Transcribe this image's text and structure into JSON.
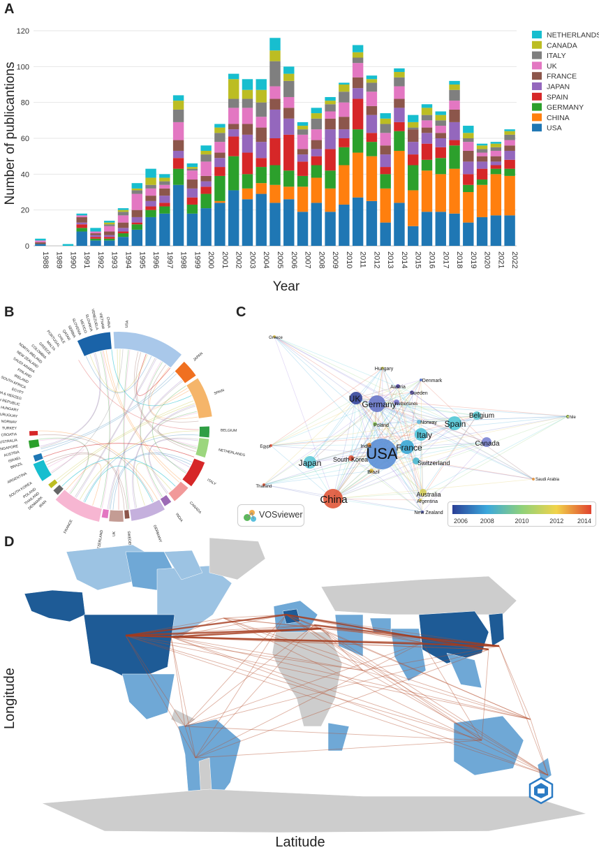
{
  "panels": {
    "a": "A",
    "b": "B",
    "c": "C",
    "d": "D"
  },
  "chart_data": [
    {
      "type": "bar",
      "stacked": true,
      "title": "",
      "xlabel": "Year",
      "ylabel": "Number of publicantions",
      "ylim": [
        0,
        120
      ],
      "yticks": [
        "0",
        "20",
        "40",
        "60",
        "80",
        "100",
        "120"
      ],
      "categories": [
        "1988",
        "1989",
        "1990",
        "1991",
        "1992",
        "1993",
        "1994",
        "1995",
        "1996",
        "1997",
        "1998",
        "1999",
        "2000",
        "2001",
        "2002",
        "2003",
        "2004",
        "2005",
        "2006",
        "2007",
        "2008",
        "2009",
        "2010",
        "2011",
        "2012",
        "2013",
        "2014",
        "2015",
        "2016",
        "2017",
        "2018",
        "2019",
        "2020",
        "2021",
        "2022"
      ],
      "legend_position": "top-right",
      "series": [
        {
          "name": "USA",
          "color": "#1f77b4",
          "values": [
            1,
            0,
            0,
            8,
            3,
            3,
            5,
            9,
            16,
            18,
            34,
            18,
            21,
            24,
            31,
            26,
            29,
            24,
            26,
            19,
            24,
            19,
            23,
            27,
            25,
            13,
            24,
            11,
            19,
            19,
            18,
            13,
            16,
            17,
            17
          ]
        },
        {
          "name": "CHINA",
          "color": "#ff7f0e",
          "values": [
            0,
            0,
            0,
            0,
            0,
            0,
            0,
            0,
            0,
            0,
            0,
            0,
            0,
            1,
            0,
            6,
            6,
            10,
            7,
            14,
            14,
            13,
            22,
            25,
            25,
            19,
            29,
            20,
            23,
            21,
            25,
            17,
            18,
            23,
            22
          ]
        },
        {
          "name": "GERMANY",
          "color": "#2ca02c",
          "values": [
            0,
            0,
            0,
            2,
            1,
            1,
            2,
            3,
            4,
            4,
            9,
            5,
            8,
            14,
            19,
            8,
            9,
            11,
            9,
            6,
            7,
            10,
            10,
            13,
            8,
            8,
            11,
            14,
            6,
            9,
            13,
            4,
            3,
            3,
            4
          ]
        },
        {
          "name": "SPAIN",
          "color": "#d62728",
          "values": [
            0,
            0,
            0,
            2,
            1,
            1,
            1,
            1,
            2,
            2,
            6,
            4,
            4,
            5,
            11,
            12,
            5,
            15,
            20,
            8,
            5,
            12,
            5,
            17,
            5,
            4,
            5,
            6,
            9,
            6,
            3,
            6,
            6,
            2,
            5
          ]
        },
        {
          "name": "JAPAN",
          "color": "#9467bd",
          "values": [
            0,
            0,
            0,
            1,
            1,
            1,
            2,
            3,
            3,
            4,
            4,
            5,
            3,
            5,
            4,
            10,
            9,
            16,
            9,
            4,
            4,
            11,
            5,
            6,
            10,
            7,
            8,
            7,
            6,
            5,
            10,
            7,
            4,
            2,
            5
          ]
        },
        {
          "name": "FRANCE",
          "color": "#8c564b",
          "values": [
            1,
            0,
            0,
            3,
            1,
            2,
            3,
            4,
            3,
            4,
            6,
            5,
            3,
            3,
            3,
            6,
            8,
            6,
            6,
            3,
            5,
            6,
            7,
            6,
            5,
            5,
            5,
            7,
            3,
            3,
            7,
            6,
            3,
            3,
            3
          ]
        },
        {
          "name": "UK",
          "color": "#e377c2",
          "values": [
            1,
            0,
            0,
            1,
            1,
            3,
            4,
            9,
            4,
            2,
            10,
            5,
            8,
            6,
            9,
            9,
            6,
            7,
            6,
            8,
            6,
            4,
            8,
            8,
            8,
            7,
            7,
            0,
            4,
            4,
            5,
            5,
            2,
            3,
            3
          ]
        },
        {
          "name": "ITALY",
          "color": "#7f7f7f",
          "values": [
            0,
            0,
            0,
            0,
            0,
            1,
            2,
            2,
            2,
            2,
            7,
            1,
            4,
            5,
            5,
            5,
            8,
            14,
            9,
            3,
            6,
            4,
            6,
            3,
            5,
            5,
            5,
            1,
            3,
            3,
            6,
            2,
            2,
            2,
            3
          ]
        },
        {
          "name": "CANADA",
          "color": "#bcbd22",
          "values": [
            0,
            0,
            0,
            0,
            0,
            1,
            1,
            1,
            4,
            2,
            5,
            1,
            2,
            3,
            11,
            5,
            7,
            6,
            4,
            2,
            3,
            2,
            4,
            3,
            2,
            3,
            3,
            3,
            4,
            3,
            3,
            3,
            2,
            2,
            2
          ]
        },
        {
          "name": "NETHERLANDS",
          "color": "#17becf",
          "values": [
            1,
            0,
            1,
            1,
            2,
            1,
            1,
            3,
            5,
            2,
            3,
            2,
            3,
            2,
            3,
            6,
            6,
            7,
            4,
            2,
            3,
            2,
            1,
            4,
            2,
            3,
            2,
            4,
            2,
            2,
            2,
            4,
            1,
            1,
            1
          ]
        }
      ]
    },
    {
      "type": "chord",
      "segments": [
        "USA",
        "JAPAN",
        "SPAIN",
        "BELGIUM",
        "NETHERLANDS",
        "ITALY",
        "CANADA",
        "INDIA",
        "GERMANY",
        "SWEDEN",
        "UK",
        "SWITZERLAND",
        "FRANCE",
        "IRAN",
        "DENMARK",
        "THAILAND",
        "POLAND",
        "SOUTH KOREA",
        "ARGENTINA",
        "BRAZIL",
        "ISRAEL",
        "AUSTRIA",
        "SINGAPORE",
        "AUSTRALIA",
        "CROATIA",
        "TURKEY",
        "NORWAY",
        "URUGUAY",
        "HUNGARY",
        "CZECH REPUBLIC",
        "BOSNIA & HERZEG",
        "EGYPT",
        "SOUTH AFRICA",
        "IRELAND",
        "FINLAND",
        "SAUDI ARABIA",
        "NEW ZEALAND",
        "NORTH IRELAND",
        "COLOMBIA",
        "GREECE",
        "MALTA",
        "PORTUGAL",
        "CHILE",
        "QATAR",
        "SERBIA",
        "SLOVENIA",
        "MEXICO",
        "SLOVAKIA",
        "VENEZUELA",
        "VIETNAM",
        "CHINA"
      ]
    },
    {
      "type": "network",
      "tool_label": "VOSviewer",
      "colorbar": {
        "min": 2006,
        "max": 2014,
        "ticks": [
          "2006",
          "2008",
          "2010",
          "2012",
          "2014"
        ]
      },
      "nodes": [
        {
          "label": "USA",
          "weight": 22,
          "year": 2007.5,
          "color": "#5b8fd6"
        },
        {
          "label": "China",
          "weight": 14,
          "year": 2014,
          "color": "#e05638"
        },
        {
          "label": "Germany",
          "weight": 12,
          "year": 2006.5,
          "color": "#6775c9"
        },
        {
          "label": "UK",
          "weight": 9,
          "year": 2006,
          "color": "#34459a"
        },
        {
          "label": "France",
          "weight": 10,
          "year": 2008,
          "color": "#3ba8d6"
        },
        {
          "label": "Italy",
          "weight": 9,
          "year": 2008.5,
          "color": "#4dc2d8"
        },
        {
          "label": "Spain",
          "weight": 10,
          "year": 2008.5,
          "color": "#52c8d6"
        },
        {
          "label": "Japan",
          "weight": 9,
          "year": 2008.5,
          "color": "#5fcad8"
        },
        {
          "label": "Canada",
          "weight": 7,
          "year": 2007,
          "color": "#7b84d3"
        },
        {
          "label": "Belgium",
          "weight": 6,
          "year": 2008.5,
          "color": "#58c8cf"
        },
        {
          "label": "Switzerland",
          "weight": 5,
          "year": 2008,
          "color": "#4bb8d0"
        },
        {
          "label": "Australia",
          "weight": 5,
          "year": 2011,
          "color": "#d6cf5a"
        },
        {
          "label": "South Korea",
          "weight": 4,
          "year": 2014,
          "color": "#e0533a"
        },
        {
          "label": "India",
          "weight": 3,
          "year": 2013,
          "color": "#e08a3a"
        },
        {
          "label": "Netherlands",
          "weight": 4,
          "year": 2007,
          "color": "#7b7ad0"
        },
        {
          "label": "Poland",
          "weight": 3,
          "year": 2010,
          "color": "#9dd86b"
        },
        {
          "label": "Brazil",
          "weight": 3,
          "year": 2012,
          "color": "#e0b842"
        },
        {
          "label": "Austria",
          "weight": 3,
          "year": 2006,
          "color": "#5b4fb1"
        },
        {
          "label": "Sweden",
          "weight": 3,
          "year": 2006,
          "color": "#7066c2"
        },
        {
          "label": "Norway",
          "weight": 3,
          "year": 2008,
          "color": "#63b6d9"
        },
        {
          "label": "Denmark",
          "weight": 2,
          "year": 2007,
          "color": "#4e6bc0"
        },
        {
          "label": "Hungary",
          "weight": 2,
          "year": 2011,
          "color": "#d0d05a"
        },
        {
          "label": "Greece",
          "weight": 2,
          "year": 2012,
          "color": "#e0c44a"
        },
        {
          "label": "Egypt",
          "weight": 2,
          "year": 2014,
          "color": "#e0533a"
        },
        {
          "label": "Thailand",
          "weight": 2,
          "year": 2014,
          "color": "#e05a3a"
        },
        {
          "label": "Chile",
          "weight": 2,
          "year": 2010,
          "color": "#b8d95a"
        },
        {
          "label": "Saudi Arabia",
          "weight": 2,
          "year": 2013,
          "color": "#e0903a"
        },
        {
          "label": "Argentina",
          "weight": 2,
          "year": 2011,
          "color": "#d6c654"
        },
        {
          "label": "New Zealand",
          "weight": 2,
          "year": 2007,
          "color": "#5560c0"
        }
      ]
    },
    {
      "type": "map",
      "xlabel": "Latitude",
      "ylabel": "Longitude"
    }
  ]
}
